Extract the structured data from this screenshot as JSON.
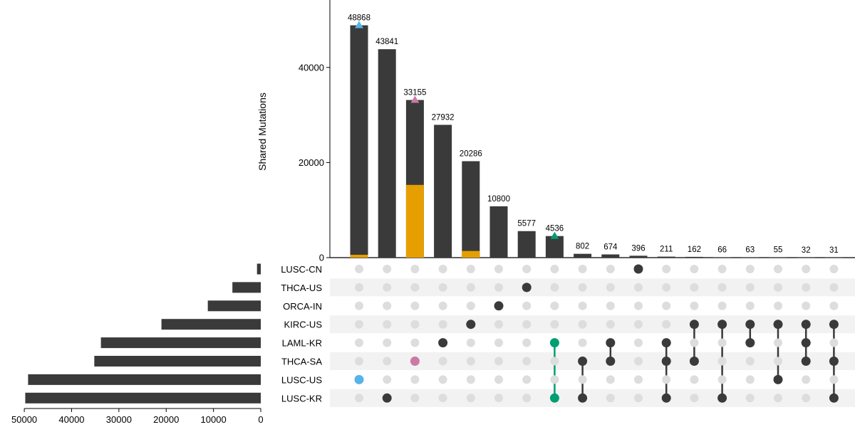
{
  "chart_data": {
    "type": "bar",
    "ylabel": "Shared Mutations",
    "ylim": [
      0,
      52000
    ],
    "yticks": [
      0,
      20000,
      40000
    ],
    "set_size_ticks": [
      50000,
      40000,
      30000,
      20000,
      10000,
      0
    ],
    "set_size_lim": [
      0,
      50000
    ],
    "sets": [
      {
        "name": "LUSC-CN",
        "size": 800
      },
      {
        "name": "THCA-US",
        "size": 6000
      },
      {
        "name": "ORCA-IN",
        "size": 11200
      },
      {
        "name": "KIRC-US",
        "size": 21000
      },
      {
        "name": "LAML-KR",
        "size": 33800
      },
      {
        "name": "THCA-SA",
        "size": 35200
      },
      {
        "name": "LUSC-US",
        "size": 49200
      },
      {
        "name": "LUSC-KR",
        "size": 49800
      }
    ],
    "intersections": [
      {
        "label": "48868",
        "value": 48868,
        "highlight": 600,
        "sets": [
          "LUSC-US"
        ],
        "marker": "#56B4E9",
        "dot_color": "#56B4E9"
      },
      {
        "label": "43841",
        "value": 43841,
        "highlight": 0,
        "sets": [
          "LUSC-KR"
        ],
        "marker": null,
        "dot_color": "#3a3a3a"
      },
      {
        "label": "33155",
        "value": 33155,
        "highlight": 15300,
        "sets": [
          "THCA-SA"
        ],
        "marker": "#CC79A7",
        "dot_color": "#CC79A7"
      },
      {
        "label": "27932",
        "value": 27932,
        "highlight": 0,
        "sets": [
          "LAML-KR"
        ],
        "marker": null,
        "dot_color": "#3a3a3a"
      },
      {
        "label": "20286",
        "value": 20286,
        "highlight": 1400,
        "sets": [
          "KIRC-US"
        ],
        "marker": null,
        "dot_color": "#3a3a3a"
      },
      {
        "label": "10800",
        "value": 10800,
        "highlight": 0,
        "sets": [
          "ORCA-IN"
        ],
        "marker": null,
        "dot_color": "#3a3a3a"
      },
      {
        "label": "5577",
        "value": 5577,
        "highlight": 0,
        "sets": [
          "THCA-US"
        ],
        "marker": null,
        "dot_color": "#3a3a3a"
      },
      {
        "label": "4536",
        "value": 4536,
        "highlight": 0,
        "sets": [
          "LAML-KR",
          "LUSC-KR"
        ],
        "marker": "#009E73",
        "dot_color": "#009E73"
      },
      {
        "label": "802",
        "value": 802,
        "highlight": 0,
        "sets": [
          "THCA-SA",
          "LUSC-KR"
        ],
        "marker": null,
        "dot_color": "#3a3a3a"
      },
      {
        "label": "674",
        "value": 674,
        "highlight": 0,
        "sets": [
          "LAML-KR",
          "THCA-SA"
        ],
        "marker": null,
        "dot_color": "#3a3a3a"
      },
      {
        "label": "396",
        "value": 396,
        "highlight": 0,
        "sets": [
          "LUSC-CN"
        ],
        "marker": null,
        "dot_color": "#3a3a3a"
      },
      {
        "label": "211",
        "value": 211,
        "highlight": 0,
        "sets": [
          "LAML-KR",
          "THCA-SA",
          "LUSC-KR"
        ],
        "marker": null,
        "dot_color": "#3a3a3a"
      },
      {
        "label": "162",
        "value": 162,
        "highlight": 0,
        "sets": [
          "KIRC-US",
          "THCA-SA"
        ],
        "marker": null,
        "dot_color": "#3a3a3a"
      },
      {
        "label": "66",
        "value": 66,
        "highlight": 0,
        "sets": [
          "KIRC-US",
          "LUSC-KR"
        ],
        "marker": null,
        "dot_color": "#3a3a3a"
      },
      {
        "label": "63",
        "value": 63,
        "highlight": 0,
        "sets": [
          "KIRC-US",
          "LAML-KR"
        ],
        "marker": null,
        "dot_color": "#3a3a3a"
      },
      {
        "label": "55",
        "value": 55,
        "highlight": 0,
        "sets": [
          "KIRC-US",
          "LUSC-US"
        ],
        "marker": null,
        "dot_color": "#3a3a3a"
      },
      {
        "label": "32",
        "value": 32,
        "highlight": 0,
        "sets": [
          "KIRC-US",
          "LAML-KR",
          "THCA-SA"
        ],
        "marker": null,
        "dot_color": "#3a3a3a"
      },
      {
        "label": "31",
        "value": 31,
        "highlight": 0,
        "sets": [
          "KIRC-US",
          "THCA-SA",
          "LUSC-KR"
        ],
        "marker": null,
        "dot_color": "#3a3a3a"
      }
    ],
    "colors": {
      "bar": "#3a3a3a",
      "highlight": "#E69F00",
      "inactive_dot": "#dddddd",
      "stripe": "#f2f2f2",
      "axis": "#000000"
    }
  }
}
